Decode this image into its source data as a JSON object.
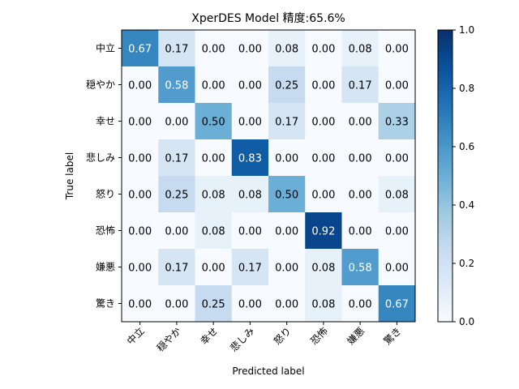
{
  "chart_data": {
    "type": "heatmap",
    "title": "XperDES Model 精度:65.6%",
    "xlabel": "Predicted label",
    "ylabel": "True label",
    "labels": [
      "中立",
      "穏やか",
      "幸せ",
      "悲しみ",
      "怒り",
      "恐怖",
      "嫌悪",
      "驚き"
    ],
    "matrix": [
      [
        0.67,
        0.17,
        0.0,
        0.0,
        0.08,
        0.0,
        0.08,
        0.0
      ],
      [
        0.0,
        0.58,
        0.0,
        0.0,
        0.25,
        0.0,
        0.17,
        0.0
      ],
      [
        0.0,
        0.0,
        0.5,
        0.0,
        0.17,
        0.0,
        0.0,
        0.33
      ],
      [
        0.0,
        0.17,
        0.0,
        0.83,
        0.0,
        0.0,
        0.0,
        0.0
      ],
      [
        0.0,
        0.25,
        0.08,
        0.08,
        0.5,
        0.0,
        0.0,
        0.08
      ],
      [
        0.0,
        0.0,
        0.08,
        0.0,
        0.0,
        0.92,
        0.0,
        0.0
      ],
      [
        0.0,
        0.17,
        0.0,
        0.17,
        0.0,
        0.08,
        0.58,
        0.0
      ],
      [
        0.0,
        0.0,
        0.25,
        0.0,
        0.0,
        0.08,
        0.0,
        0.67
      ]
    ],
    "value_format": "0.00",
    "colormap": "Blues",
    "colorbar": {
      "range": [
        0.0,
        1.0
      ],
      "ticks": [
        "0.0",
        "0.2",
        "0.4",
        "0.6",
        "0.8",
        "1.0"
      ]
    },
    "grid": false
  }
}
